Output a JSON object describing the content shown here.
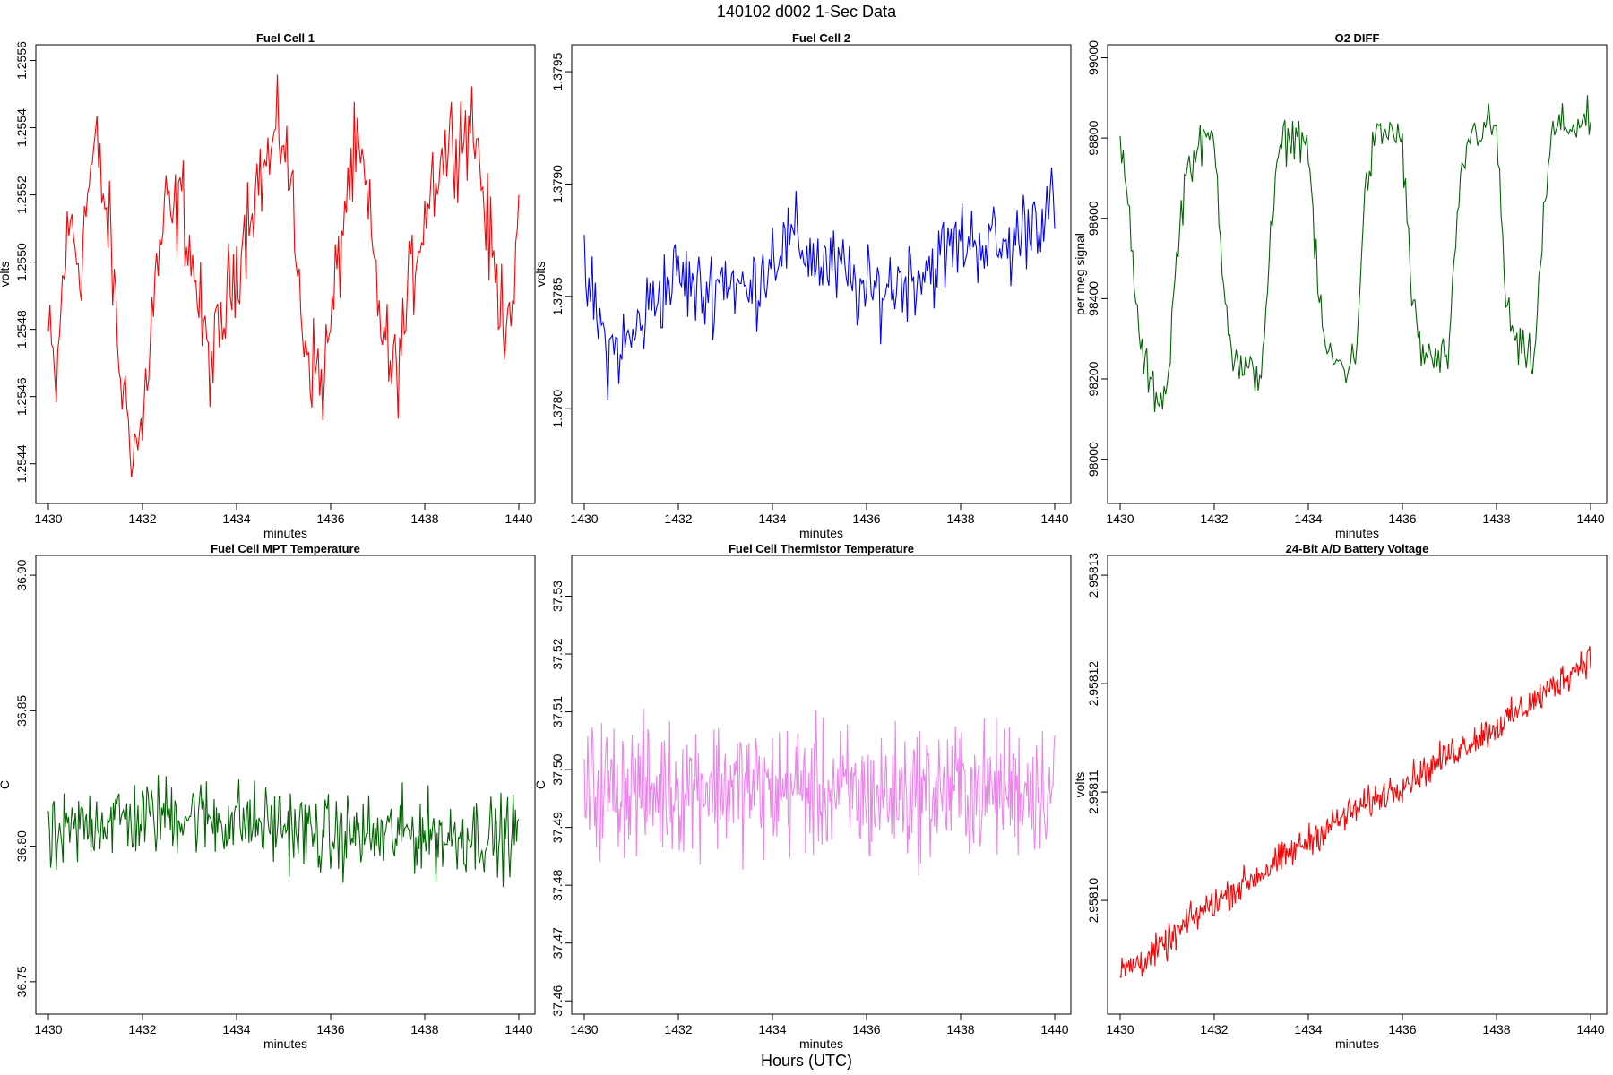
{
  "figure": {
    "title": "140102   d002   1-Sec Data",
    "bottom_label": "Hours (UTC)"
  },
  "chart_data": [
    {
      "type": "line",
      "title": "Fuel Cell 1",
      "xlabel": "minutes",
      "ylabel": "volts",
      "xlim": [
        1430,
        1440
      ],
      "ylim": [
        1.25433,
        1.25562
      ],
      "xticks": [
        "1430",
        "1432",
        "1434",
        "1436",
        "1438",
        "1440"
      ],
      "yticks": [
        "1.2544",
        "1.2546",
        "1.2548",
        "1.2550",
        "1.2552",
        "1.2554",
        "1.2556"
      ],
      "color": "#ff0000",
      "series": [
        {
          "x": [
            1430.0,
            1430.17,
            1430.33,
            1430.5,
            1430.67,
            1430.83,
            1431.0,
            1431.17,
            1431.33,
            1431.5,
            1431.67,
            1431.83,
            1432.0,
            1432.17,
            1432.33,
            1432.5,
            1432.67,
            1432.83,
            1433.0,
            1433.17,
            1433.33,
            1433.5,
            1433.67,
            1433.83,
            1434.0,
            1434.17,
            1434.33,
            1434.5,
            1434.67,
            1434.83,
            1435.0,
            1435.17,
            1435.33,
            1435.5,
            1435.67,
            1435.83,
            1436.0,
            1436.17,
            1436.33,
            1436.5,
            1436.67,
            1436.83,
            1437.0,
            1437.17,
            1437.33,
            1437.5,
            1437.67,
            1437.83,
            1438.0,
            1438.17,
            1438.33,
            1438.5,
            1438.67,
            1438.83,
            1439.0,
            1439.17,
            1439.33,
            1439.5,
            1439.67,
            1439.83,
            1440.0
          ],
          "values": [
            1.25478,
            1.25462,
            1.255,
            1.25512,
            1.25498,
            1.2552,
            1.25535,
            1.2552,
            1.25505,
            1.2547,
            1.25455,
            1.25445,
            1.2545,
            1.2548,
            1.255,
            1.25515,
            1.25512,
            1.2552,
            1.25505,
            1.2549,
            1.25475,
            1.2547,
            1.2548,
            1.2549,
            1.255,
            1.2551,
            1.2552,
            1.25525,
            1.2553,
            1.25535,
            1.2554,
            1.2552,
            1.2549,
            1.25475,
            1.25468,
            1.25465,
            1.2548,
            1.255,
            1.2552,
            1.2553,
            1.25528,
            1.2551,
            1.2549,
            1.25475,
            1.25465,
            1.25475,
            1.2549,
            1.25505,
            1.25515,
            1.25525,
            1.2553,
            1.25535,
            1.25538,
            1.2554,
            1.25542,
            1.2553,
            1.2551,
            1.25495,
            1.25485,
            1.2549,
            1.25505
          ]
        }
      ]
    },
    {
      "type": "line",
      "title": "Fuel Cell 2",
      "xlabel": "minutes",
      "ylabel": "volts",
      "xlim": [
        1430,
        1440
      ],
      "ylim": [
        1.37765,
        1.37958
      ],
      "xticks": [
        "1430",
        "1432",
        "1434",
        "1436",
        "1438",
        "1440"
      ],
      "yticks": [
        "1.3780",
        "1.3785",
        "1.3790",
        "1.3795"
      ],
      "color": "#0000ff",
      "series": [
        {
          "x": [
            1430.0,
            1430.5,
            1431.0,
            1431.5,
            1432.0,
            1432.5,
            1433.0,
            1433.5,
            1434.0,
            1434.5,
            1435.0,
            1435.5,
            1436.0,
            1436.5,
            1437.0,
            1437.5,
            1438.0,
            1438.5,
            1439.0,
            1439.5,
            1440.0
          ],
          "values": [
            1.3786,
            1.37825,
            1.3783,
            1.3785,
            1.3786,
            1.3785,
            1.3786,
            1.3785,
            1.3787,
            1.37875,
            1.37865,
            1.3786,
            1.3785,
            1.37855,
            1.3786,
            1.37865,
            1.37875,
            1.37875,
            1.3787,
            1.37885,
            1.3789
          ]
        }
      ]
    },
    {
      "type": "line",
      "title": "O2 DIFF",
      "xlabel": "minutes",
      "ylabel": "per meg signal",
      "xlim": [
        1430,
        1440
      ],
      "ylim": [
        97930,
        99010
      ],
      "xticks": [
        "1430",
        "1432",
        "1434",
        "1436",
        "1438",
        "1440"
      ],
      "yticks": [
        "98000",
        "98200",
        "98400",
        "98600",
        "98800",
        "99000"
      ],
      "color": "#006400",
      "series": [
        {
          "x": [
            1430.0,
            1430.2,
            1430.4,
            1430.6,
            1430.8,
            1431.0,
            1431.2,
            1431.4,
            1431.6,
            1431.8,
            1432.0,
            1432.2,
            1432.4,
            1432.6,
            1432.8,
            1433.0,
            1433.2,
            1433.4,
            1433.6,
            1433.8,
            1434.0,
            1434.2,
            1434.4,
            1434.6,
            1434.8,
            1435.0,
            1435.2,
            1435.4,
            1435.6,
            1435.8,
            1436.0,
            1436.2,
            1436.4,
            1436.6,
            1436.8,
            1437.0,
            1437.2,
            1437.4,
            1437.6,
            1437.8,
            1438.0,
            1438.2,
            1438.4,
            1438.6,
            1438.8,
            1439.0,
            1439.2,
            1439.4,
            1439.6,
            1439.8
          ],
          "values": [
            98780,
            98600,
            98300,
            98200,
            98150,
            98180,
            98500,
            98720,
            98760,
            98790,
            98800,
            98450,
            98250,
            98220,
            98210,
            98220,
            98550,
            98780,
            98800,
            98810,
            98780,
            98420,
            98260,
            98240,
            98230,
            98250,
            98650,
            98790,
            98810,
            98820,
            98790,
            98400,
            98270,
            98250,
            98240,
            98270,
            98650,
            98800,
            98820,
            98830,
            98820,
            98400,
            98280,
            98260,
            98250,
            98600,
            98820,
            98830,
            98830,
            98840
          ]
        }
      ]
    },
    {
      "type": "line",
      "title": "Fuel Cell MPT Temperature",
      "xlabel": "minutes",
      "ylabel": "C",
      "xlim": [
        1430,
        1440
      ],
      "ylim": [
        36.744,
        36.904
      ],
      "xticks": [
        "1430",
        "1432",
        "1434",
        "1436",
        "1438",
        "1440"
      ],
      "yticks": [
        "36.75",
        "36.80",
        "36.85",
        "36.90"
      ],
      "color": "#006400",
      "series": [
        {
          "x": [
            1430.0,
            1430.5,
            1431.0,
            1431.5,
            1432.0,
            1432.5,
            1433.0,
            1433.5,
            1434.0,
            1434.5,
            1435.0,
            1435.5,
            1436.0,
            1436.5,
            1437.0,
            1437.5,
            1438.0,
            1438.5,
            1439.0,
            1439.5,
            1440.0
          ],
          "values": [
            36.8,
            36.805,
            36.81,
            36.81,
            36.81,
            36.812,
            36.812,
            36.81,
            36.81,
            36.808,
            36.808,
            36.805,
            36.803,
            36.805,
            36.803,
            36.805,
            36.805,
            36.803,
            36.805,
            36.803,
            36.805
          ]
        }
      ]
    },
    {
      "type": "line",
      "title": "Fuel Cell Thermistor Temperature",
      "xlabel": "minutes",
      "ylabel": "C",
      "xlim": [
        1430,
        1440
      ],
      "ylim": [
        37.4605,
        37.5355
      ],
      "xticks": [
        "1430",
        "1432",
        "1434",
        "1436",
        "1438",
        "1440"
      ],
      "yticks": [
        "37.46",
        "37.47",
        "37.48",
        "37.49",
        "37.50",
        "37.51",
        "37.52",
        "37.53"
      ],
      "color": "#ee82ee",
      "series": [
        {
          "x": [
            1430.0,
            1430.5,
            1431.0,
            1431.5,
            1432.0,
            1432.5,
            1433.0,
            1433.5,
            1434.0,
            1434.5,
            1435.0,
            1435.5,
            1436.0,
            1436.5,
            1437.0,
            1437.5,
            1438.0,
            1438.5,
            1439.0,
            1439.5,
            1440.0
          ],
          "values": [
            37.496,
            37.497,
            37.497,
            37.496,
            37.497,
            37.498,
            37.497,
            37.497,
            37.496,
            37.497,
            37.496,
            37.496,
            37.495,
            37.496,
            37.496,
            37.496,
            37.497,
            37.496,
            37.497,
            37.497,
            37.497
          ]
        }
      ]
    },
    {
      "type": "line",
      "title": "24-Bit A/D Battery Voltage",
      "xlabel": "minutes",
      "ylabel": "volts",
      "xlim": [
        1430,
        1440
      ],
      "ylim": [
        2.958091,
        2.958131
      ],
      "xticks": [
        "1430",
        "1432",
        "1434",
        "1436",
        "1438",
        "1440"
      ],
      "yticks": [
        "2.95810",
        "2.95811",
        "2.95812",
        "2.95813"
      ],
      "color": "#ff0000",
      "series": [
        {
          "x": [
            1430.0,
            1430.5,
            1431.0,
            1431.5,
            1432.0,
            1432.5,
            1433.0,
            1433.5,
            1434.0,
            1434.5,
            1435.0,
            1435.5,
            1436.0,
            1436.5,
            1437.0,
            1437.5,
            1438.0,
            1438.5,
            1439.0,
            1439.5,
            1440.0
          ],
          "values": [
            2.9580935,
            2.9580945,
            2.958096,
            2.9580982,
            2.9580998,
            2.9581012,
            2.9581025,
            2.958104,
            2.9581055,
            2.958107,
            2.9581083,
            2.9581095,
            2.9581108,
            2.958112,
            2.9581135,
            2.9581148,
            2.958116,
            2.9581175,
            2.958119,
            2.9581208,
            2.9581225
          ]
        }
      ]
    }
  ]
}
